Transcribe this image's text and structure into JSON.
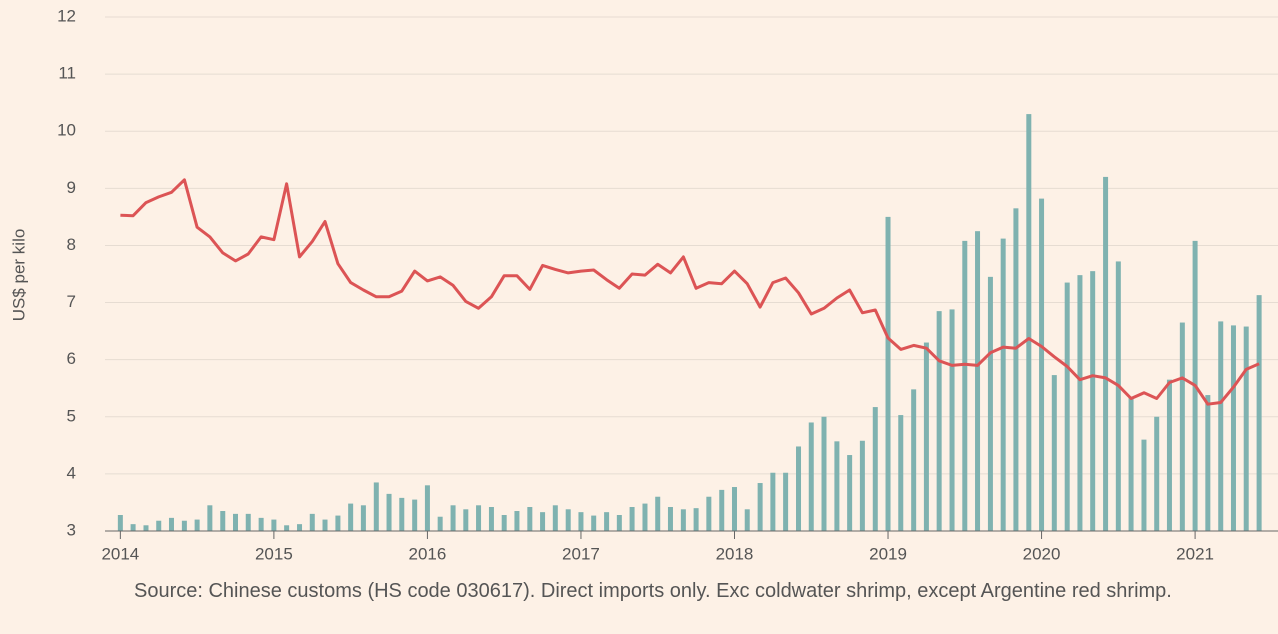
{
  "chart_data": {
    "type": "bar_line",
    "y_label": "US$ per kilo",
    "note": "Source: Chinese customs (HS code 030617). Direct imports only. Exc coldwater shrimp, except Argentine red shrimp.",
    "x": [
      2014,
      2014.083,
      2014.167,
      2014.25,
      2014.333,
      2014.417,
      2014.5,
      2014.583,
      2014.667,
      2014.75,
      2014.833,
      2014.917,
      2015,
      2015.083,
      2015.167,
      2015.25,
      2015.333,
      2015.417,
      2015.5,
      2015.583,
      2015.667,
      2015.75,
      2015.833,
      2015.917,
      2016,
      2016.083,
      2016.167,
      2016.25,
      2016.333,
      2016.417,
      2016.5,
      2016.583,
      2016.667,
      2016.75,
      2016.833,
      2016.917,
      2017,
      2017.083,
      2017.167,
      2017.25,
      2017.333,
      2017.417,
      2017.5,
      2017.583,
      2017.667,
      2017.75,
      2017.833,
      2017.917,
      2018,
      2018.083,
      2018.167,
      2018.25,
      2018.333,
      2018.417,
      2018.5,
      2018.583,
      2018.667,
      2018.75,
      2018.833,
      2018.917,
      2019,
      2019.083,
      2019.167,
      2019.25,
      2019.333,
      2019.417,
      2019.5,
      2019.583,
      2019.667,
      2019.75,
      2019.833,
      2019.917,
      2020,
      2020.083,
      2020.167,
      2020.25,
      2020.333,
      2020.417,
      2020.5,
      2020.583,
      2020.667,
      2020.75,
      2020.833,
      2020.917,
      2021,
      2021.083,
      2021.167,
      2021.25,
      2021.333,
      2021.417
    ],
    "series": [
      {
        "type": "bar",
        "color": "#7fb2b0",
        "values": [
          3.28,
          3.12,
          3.1,
          3.18,
          3.23,
          3.18,
          3.2,
          3.45,
          3.35,
          3.3,
          3.3,
          3.23,
          3.2,
          3.1,
          3.12,
          3.3,
          3.2,
          3.27,
          3.48,
          3.45,
          3.85,
          3.65,
          3.58,
          3.55,
          3.8,
          3.25,
          3.45,
          3.38,
          3.45,
          3.42,
          3.28,
          3.35,
          3.42,
          3.33,
          3.45,
          3.38,
          3.33,
          3.27,
          3.33,
          3.28,
          3.42,
          3.48,
          3.6,
          3.42,
          3.38,
          3.4,
          3.6,
          3.72,
          3.77,
          3.38,
          3.84,
          4.02,
          4.02,
          4.48,
          4.9,
          5.0,
          4.57,
          4.33,
          4.58,
          5.17,
          8.5,
          5.03,
          5.48,
          6.3,
          6.85,
          6.88,
          8.08,
          8.25,
          7.45,
          8.12,
          8.65,
          10.3,
          8.82,
          5.73,
          7.35,
          7.48,
          7.55,
          9.2,
          7.72,
          5.33,
          4.6,
          5.0,
          5.65,
          6.65,
          8.08,
          5.38,
          6.67,
          6.6,
          6.58,
          7.13
        ]
      },
      {
        "type": "line",
        "color": "#dc5455",
        "values": [
          8.53,
          8.52,
          8.75,
          8.85,
          8.93,
          9.15,
          8.32,
          8.15,
          7.87,
          7.73,
          7.85,
          8.15,
          8.1,
          9.08,
          7.8,
          8.07,
          8.42,
          7.68,
          7.35,
          7.22,
          7.1,
          7.1,
          7.2,
          7.55,
          7.38,
          7.45,
          7.3,
          7.02,
          6.9,
          7.1,
          7.47,
          7.47,
          7.23,
          7.65,
          7.58,
          7.52,
          7.55,
          7.57,
          7.4,
          7.25,
          7.5,
          7.48,
          7.67,
          7.52,
          7.8,
          7.25,
          7.35,
          7.33,
          7.55,
          7.33,
          6.92,
          7.35,
          7.43,
          7.17,
          6.8,
          6.9,
          7.08,
          7.22,
          6.82,
          6.87,
          6.38,
          6.18,
          6.25,
          6.2,
          5.98,
          5.9,
          5.92,
          5.9,
          6.12,
          6.22,
          6.2,
          6.37,
          6.23,
          6.05,
          5.88,
          5.65,
          5.72,
          5.68,
          5.55,
          5.32,
          5.42,
          5.32,
          5.6,
          5.68,
          5.55,
          5.22,
          5.25,
          5.52,
          5.83,
          5.93
        ]
      }
    ],
    "xlim": [
      2013.9,
      2021.54
    ],
    "xticks": [
      2014,
      2015,
      2016,
      2017,
      2018,
      2019,
      2020,
      2021
    ],
    "ylim": [
      3,
      12
    ],
    "yticks": [
      3,
      4,
      5,
      6,
      7,
      8,
      9,
      10,
      11,
      12
    ],
    "grid": true
  }
}
